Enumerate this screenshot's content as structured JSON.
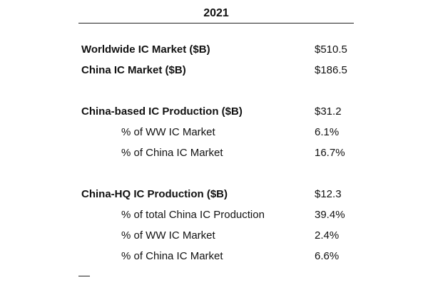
{
  "table": {
    "year_header": "2021",
    "rows": [
      {
        "label": "Worldwide IC Market ($B)",
        "value": "$510.5"
      },
      {
        "label": "China IC Market ($B)",
        "value": "$186.5"
      },
      {
        "label": "China-based IC Production ($B)",
        "value": "$31.2"
      },
      {
        "label": "% of WW IC Market",
        "value": "6.1%"
      },
      {
        "label": "% of China IC Market",
        "value": "16.7%"
      },
      {
        "label": "China-HQ IC Production ($B)",
        "value": "$12.3"
      },
      {
        "label": "% of total China IC Production",
        "value": "39.4%"
      },
      {
        "label": "% of WW IC Market",
        "value": "2.4%"
      },
      {
        "label": "% of China IC Market",
        "value": "6.6%"
      }
    ]
  }
}
